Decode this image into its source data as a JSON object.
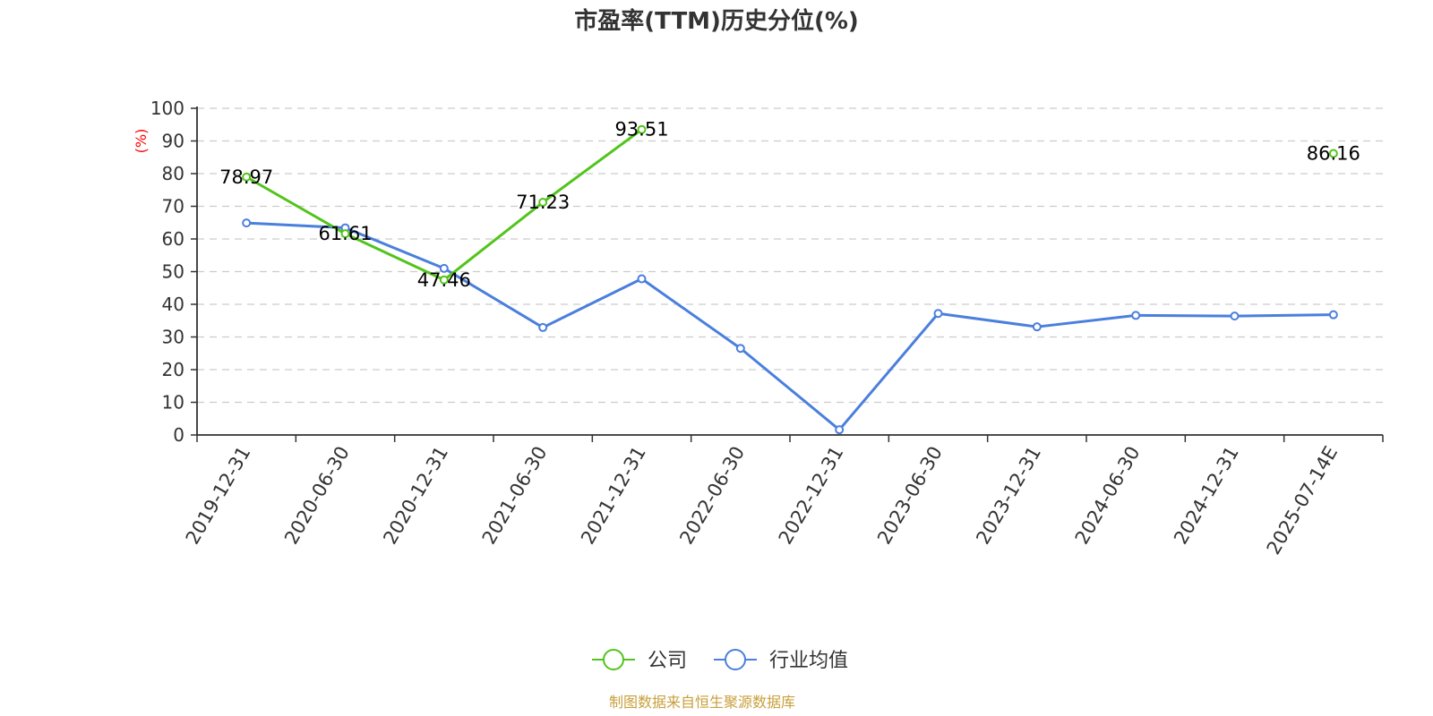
{
  "chart_data": {
    "type": "line",
    "title": "市盈率(TTM)历史分位(%)",
    "ylabel": "(%)",
    "ylim": [
      0,
      100
    ],
    "yticks": [
      0,
      10,
      20,
      30,
      40,
      50,
      60,
      70,
      80,
      90,
      100
    ],
    "grid": true,
    "legend_position": "bottom-center",
    "categories": [
      "2019-12-31",
      "2020-06-30",
      "2020-12-31",
      "2021-06-30",
      "2021-12-31",
      "2022-06-30",
      "2022-12-31",
      "2023-06-30",
      "2023-12-31",
      "2024-06-30",
      "2024-12-31",
      "2025-07-14E"
    ],
    "series": [
      {
        "name": "公司",
        "color": "#52c41a",
        "values": [
          78.97,
          61.61,
          47.46,
          71.23,
          93.51,
          null,
          null,
          null,
          null,
          null,
          null,
          86.16
        ],
        "labels": [
          "78.97",
          "61.61",
          "47.46",
          "71.23",
          "93.51",
          null,
          null,
          null,
          null,
          null,
          null,
          "86.16"
        ]
      },
      {
        "name": "行业均值",
        "color": "#4a7fdd",
        "values": [
          64.9,
          63.4,
          51.0,
          32.9,
          47.8,
          26.5,
          1.6,
          37.2,
          33.1,
          36.6,
          36.4,
          36.8
        ],
        "labels": null
      }
    ],
    "source": "制图数据来自恒生聚源数据库"
  },
  "colors": {
    "axis": "#333333",
    "grid": "#cccccc",
    "unit_label": "#ff0000",
    "source_text": "#c8a03c"
  }
}
